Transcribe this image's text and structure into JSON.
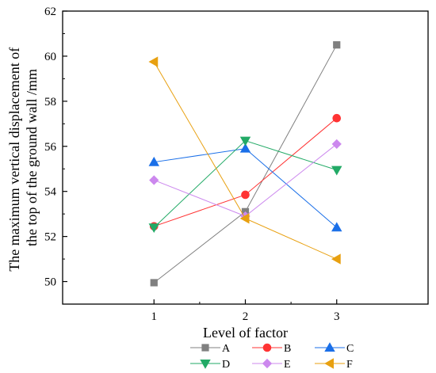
{
  "chart_data": {
    "type": "line",
    "xlabel": "Level of factor",
    "ylabel_lines": [
      "The maximum vertical displacement of",
      "the top of the ground wall /mm"
    ],
    "x": [
      1,
      2,
      3
    ],
    "xlim": [
      0.0,
      4.0
    ],
    "ylim": [
      49.0,
      62.0
    ],
    "x_ticks": [
      1,
      2,
      3
    ],
    "y_ticks": [
      50,
      52,
      54,
      56,
      58,
      60,
      62
    ],
    "grid": false,
    "legend_position": "bottom",
    "series": [
      {
        "name": "A",
        "color": "#808080",
        "marker": "square",
        "values": [
          49.95,
          53.1,
          60.5
        ]
      },
      {
        "name": "B",
        "color": "#ff3333",
        "marker": "circle",
        "values": [
          52.45,
          53.85,
          57.25
        ]
      },
      {
        "name": "C",
        "color": "#1a6fe8",
        "marker": "triangle-up",
        "values": [
          55.3,
          55.9,
          52.4
        ]
      },
      {
        "name": "D",
        "color": "#22aa66",
        "marker": "triangle-down",
        "values": [
          52.4,
          56.25,
          54.95
        ]
      },
      {
        "name": "E",
        "color": "#cc88ee",
        "marker": "diamond",
        "values": [
          54.5,
          52.9,
          56.1
        ]
      },
      {
        "name": "F",
        "color": "#e8a010",
        "marker": "triangle-left",
        "values": [
          59.75,
          52.8,
          51.0
        ]
      }
    ]
  }
}
